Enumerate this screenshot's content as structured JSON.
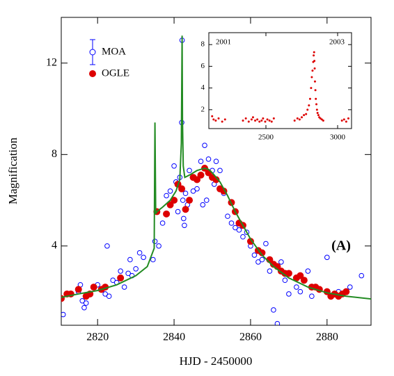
{
  "chart_data": [
    {
      "type": "scatter",
      "xlabel": "HJD - 2450000",
      "ylabel": "Magnification",
      "annotation": "(A)",
      "xlim": [
        2810.5,
        2891.5
      ],
      "ylim": [
        0.53,
        14
      ],
      "xticks": [
        2820,
        2840,
        2860,
        2880
      ],
      "yticks": [
        4,
        8,
        12
      ],
      "legend": "upper left",
      "series": [
        {
          "name": "MOA",
          "color": "#0000ff",
          "marker": "open",
          "x": [
            2811,
            2815,
            2815.5,
            2816,
            2816.5,
            2817,
            2820,
            2822,
            2822.5,
            2823,
            2824,
            2825,
            2826,
            2827,
            2828,
            2828.5,
            2829,
            2830,
            2831,
            2832,
            2834.5,
            2835,
            2836,
            2837,
            2838,
            2839,
            2840,
            2840.5,
            2841,
            2841.5,
            2842,
            2842.1,
            2842.3,
            2842.5,
            2842.7,
            2843,
            2843.5,
            2844,
            2845,
            2846,
            2847,
            2847.5,
            2848,
            2848.5,
            2849,
            2850,
            2850.5,
            2851,
            2852,
            2853,
            2854,
            2855,
            2856,
            2857,
            2858,
            2859,
            2860,
            2861,
            2862,
            2863,
            2864,
            2865,
            2866,
            2867,
            2868,
            2869,
            2870,
            2872,
            2873,
            2875,
            2876,
            2877,
            2880,
            2883,
            2886,
            2889
          ],
          "values": [
            1.0,
            2.0,
            2.3,
            1.6,
            1.3,
            1.5,
            2.3,
            1.9,
            4.0,
            1.8,
            2.5,
            2.4,
            2.9,
            2.2,
            2.8,
            3.4,
            2.7,
            3.0,
            3.7,
            3.5,
            3.4,
            4.2,
            4.0,
            5.0,
            6.2,
            6.4,
            7.5,
            6.8,
            5.5,
            7.0,
            9.4,
            13.0,
            6.0,
            5.2,
            4.9,
            6.3,
            5.8,
            7.3,
            6.4,
            6.5,
            7.7,
            5.8,
            8.4,
            6.0,
            7.8,
            7.3,
            6.7,
            7.7,
            7.3,
            6.3,
            5.3,
            5.0,
            4.8,
            4.7,
            4.4,
            4.6,
            4.0,
            3.6,
            3.3,
            3.4,
            4.1,
            2.9,
            1.2,
            0.6,
            3.3,
            2.5,
            1.9,
            2.2,
            2.0,
            2.9,
            1.8,
            2.2,
            3.5,
            2.0,
            2.2,
            2.7
          ]
        },
        {
          "name": "OGLE",
          "color": "#dd0000",
          "marker": "filled",
          "x": [
            2810.5,
            2812,
            2813,
            2815,
            2817,
            2818,
            2819,
            2821,
            2822,
            2826,
            2835.5,
            2838,
            2839,
            2840,
            2841,
            2842,
            2843,
            2844,
            2845,
            2846,
            2847,
            2848,
            2849,
            2850,
            2851,
            2852,
            2853,
            2855,
            2856,
            2857,
            2858,
            2860,
            2862,
            2863,
            2865,
            2866,
            2867,
            2868,
            2869,
            2870,
            2872,
            2873,
            2874,
            2876,
            2877,
            2878,
            2880,
            2881,
            2882,
            2883,
            2884,
            2885
          ],
          "values": [
            1.7,
            1.9,
            1.9,
            2.1,
            1.8,
            1.9,
            2.2,
            2.1,
            2.2,
            2.6,
            5.5,
            5.4,
            5.8,
            6.0,
            6.7,
            6.5,
            5.6,
            6.0,
            7.0,
            6.9,
            7.1,
            7.4,
            7.2,
            7.0,
            6.9,
            6.5,
            6.4,
            5.9,
            5.5,
            5.0,
            4.9,
            4.2,
            3.8,
            3.7,
            3.4,
            3.2,
            3.1,
            2.9,
            2.8,
            2.8,
            2.6,
            2.7,
            2.5,
            2.2,
            2.2,
            2.1,
            2.0,
            1.8,
            1.9,
            1.8,
            1.9,
            2.0
          ]
        },
        {
          "style": "line",
          "color": "#228b22",
          "x": [
            2810.5,
            2815,
            2820,
            2825,
            2830,
            2833,
            2834.8,
            2835,
            2835.2,
            2835.5,
            2837,
            2839,
            2840.5,
            2841.5,
            2841.9,
            2842.1,
            2842.2,
            2842.4,
            2842.8,
            2844,
            2846,
            2848,
            2849,
            2850,
            2852,
            2854,
            2856,
            2858,
            2860,
            2863,
            2866,
            2870,
            2875,
            2880,
            2885,
            2891.5
          ],
          "values": [
            1.75,
            1.9,
            2.05,
            2.3,
            2.7,
            3.1,
            3.9,
            9.4,
            5.4,
            5.5,
            5.7,
            6.0,
            6.4,
            6.9,
            8.5,
            13.2,
            9.5,
            7.5,
            7.0,
            7.1,
            7.3,
            7.4,
            7.35,
            7.2,
            6.8,
            6.2,
            5.5,
            4.9,
            4.3,
            3.6,
            3.1,
            2.6,
            2.2,
            1.95,
            1.8,
            1.68
          ]
        }
      ]
    },
    {
      "type": "scatter",
      "annotations": [
        "2001",
        "2003"
      ],
      "xlim": [
        2102,
        3097
      ],
      "ylim": [
        0.26,
        9.1
      ],
      "xticks": [
        2500,
        3000
      ],
      "yticks": [
        2,
        4,
        6,
        8
      ],
      "series": [
        {
          "color": "#dd0000",
          "marker": "dot",
          "x": [
            2125,
            2135,
            2150,
            2170,
            2195,
            2215,
            2340,
            2360,
            2380,
            2400,
            2410,
            2425,
            2440,
            2455,
            2470,
            2480,
            2495,
            2510,
            2525,
            2540,
            2555,
            2700,
            2720,
            2735,
            2750,
            2765,
            2780,
            2790,
            2800,
            2808,
            2815,
            2820,
            2825,
            2830,
            2833,
            2836,
            2838,
            2840,
            2842,
            2845,
            2848,
            2852,
            2856,
            2860,
            2866,
            2872,
            2880,
            2890,
            2900,
            3030,
            3045,
            3060,
            3075
          ],
          "values": [
            1.4,
            1.1,
            1.0,
            1.2,
            0.9,
            1.1,
            1.0,
            1.2,
            0.9,
            1.1,
            1.3,
            1.0,
            1.1,
            0.9,
            1.0,
            1.2,
            0.9,
            1.1,
            1.0,
            0.9,
            1.2,
            1.0,
            1.2,
            1.1,
            1.3,
            1.5,
            1.6,
            2.0,
            2.4,
            3.0,
            4.0,
            5.0,
            5.6,
            6.4,
            7.0,
            7.3,
            6.5,
            5.8,
            4.6,
            3.8,
            3.0,
            2.5,
            2.0,
            1.7,
            1.5,
            1.3,
            1.2,
            1.1,
            1.0,
            1.0,
            1.1,
            0.9,
            1.2
          ]
        }
      ]
    }
  ]
}
